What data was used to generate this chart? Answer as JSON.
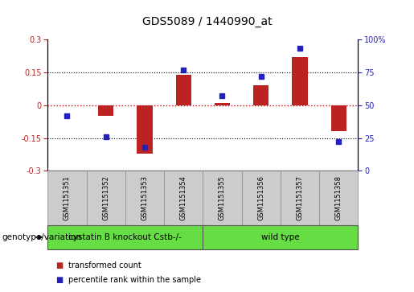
{
  "title": "GDS5089 / 1440990_at",
  "samples": [
    "GSM1151351",
    "GSM1151352",
    "GSM1151353",
    "GSM1151354",
    "GSM1151355",
    "GSM1151356",
    "GSM1151357",
    "GSM1151358"
  ],
  "transformed_count": [
    0.0,
    -0.05,
    -0.22,
    0.14,
    0.01,
    0.09,
    0.22,
    -0.12
  ],
  "percentile_rank": [
    42,
    26,
    18,
    77,
    57,
    72,
    93,
    22
  ],
  "group1_samples": 4,
  "group1_label": "cystatin B knockout Cstb-/-",
  "group2_label": "wild type",
  "group_color": "#66dd44",
  "bar_color": "#bb2222",
  "dot_color": "#2222bb",
  "sample_box_color": "#cccccc",
  "ylim_left": [
    -0.3,
    0.3
  ],
  "ylim_right": [
    0,
    100
  ],
  "yticks_left": [
    -0.3,
    -0.15,
    0.0,
    0.15,
    0.3
  ],
  "yticks_right": [
    0,
    25,
    50,
    75,
    100
  ],
  "hline_color": "#cc0000",
  "grid_color": "#000000",
  "background_color": "#ffffff",
  "legend_red_label": "transformed count",
  "legend_blue_label": "percentile rank within the sample",
  "genotype_label": "genotype/variation",
  "title_fontsize": 10,
  "tick_fontsize": 7,
  "label_fontsize": 7,
  "sample_fontsize": 6,
  "group_fontsize": 7.5
}
